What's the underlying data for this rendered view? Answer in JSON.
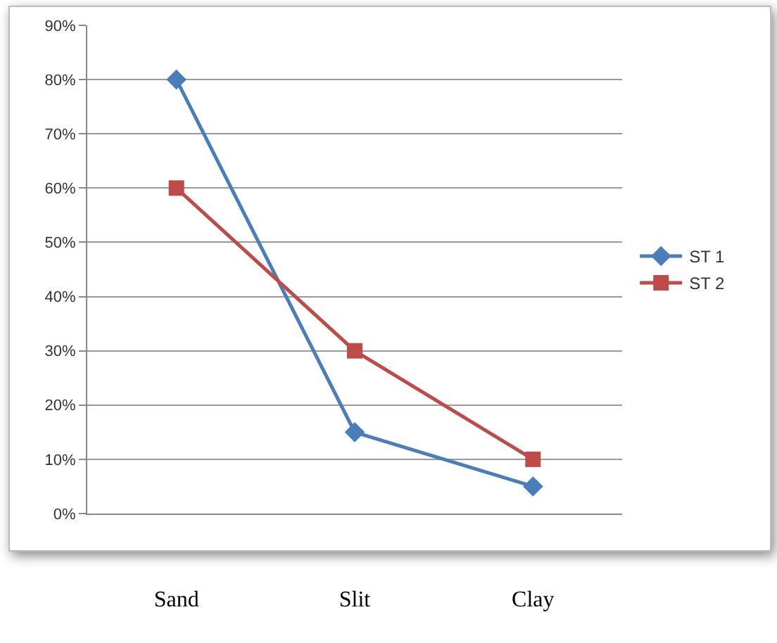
{
  "chart_data": {
    "type": "line",
    "categories": [
      "Sand",
      "Slit",
      "Clay"
    ],
    "series": [
      {
        "name": "ST 1",
        "color": "#4a7ebb",
        "marker": "diamond",
        "values": [
          80,
          15,
          5
        ]
      },
      {
        "name": "ST 2",
        "color": "#be4b48",
        "marker": "square",
        "values": [
          60,
          30,
          10
        ]
      }
    ],
    "ylim": [
      0,
      90
    ],
    "yticks": [
      {
        "value": 0,
        "label": "0%"
      },
      {
        "value": 10,
        "label": "10%"
      },
      {
        "value": 20,
        "label": "20%"
      },
      {
        "value": 30,
        "label": "30%"
      },
      {
        "value": 40,
        "label": "40%"
      },
      {
        "value": 50,
        "label": "50%"
      },
      {
        "value": 60,
        "label": "60%"
      },
      {
        "value": 70,
        "label": "70%"
      },
      {
        "value": 80,
        "label": "80%"
      },
      {
        "value": 90,
        "label": "90%"
      }
    ],
    "grid": "y",
    "legend": "right",
    "line_style": "solid"
  }
}
